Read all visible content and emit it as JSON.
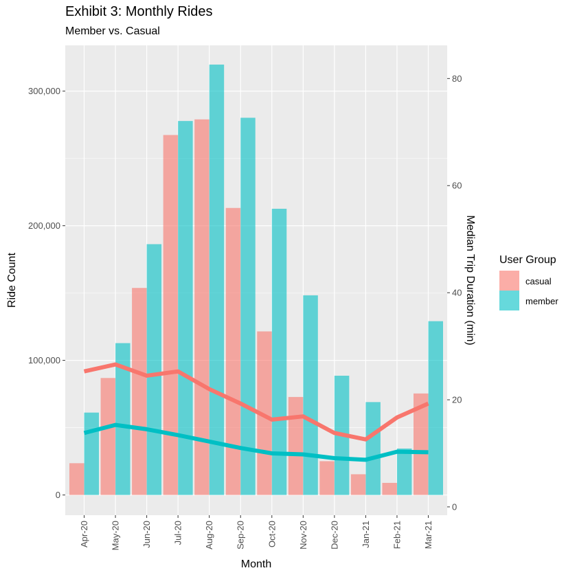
{
  "chart_data": {
    "type": "bar",
    "title": "Exhibit 3: Monthly Rides",
    "subtitle": "Member vs. Casual",
    "xlabel": "Month",
    "ylabel": "Ride Count",
    "y2label": "Median Trip Duration (min)",
    "categories": [
      "Apr-20",
      "May-20",
      "Jun-20",
      "Jul-20",
      "Aug-20",
      "Sep-20",
      "Oct-20",
      "Nov-20",
      "Dec-20",
      "Jan-21",
      "Feb-21",
      "Mar-21"
    ],
    "ylim": [
      -15000,
      334000
    ],
    "y2lim": [
      -1.55,
      86.2
    ],
    "yticks": [
      0,
      100000,
      200000,
      300000
    ],
    "ytick_labels": [
      "0",
      "100,000",
      "200,000",
      "300,000"
    ],
    "y2ticks": [
      0,
      20,
      40,
      60,
      80
    ],
    "y2tick_labels": [
      "0",
      "20",
      "40",
      "60",
      "80"
    ],
    "grid": true,
    "legend": {
      "title": "User Group",
      "position": "right",
      "entries": [
        "casual",
        "member"
      ]
    },
    "series": [
      {
        "name": "casual",
        "color": "#F8766D",
        "bar_values": [
          23600,
          86900,
          153800,
          267400,
          279000,
          213200,
          121500,
          72800,
          25100,
          15400,
          9000,
          75400
        ],
        "line_values": [
          25.3,
          26.6,
          24.5,
          25.3,
          22.0,
          19.3,
          16.3,
          16.9,
          13.8,
          12.6,
          16.7,
          19.3
        ]
      },
      {
        "name": "member",
        "color": "#00BFC4",
        "bar_values": [
          61200,
          112800,
          186300,
          277800,
          319700,
          280200,
          212600,
          148300,
          88600,
          69000,
          34500,
          129100
        ],
        "line_values": [
          13.8,
          15.3,
          14.5,
          13.4,
          12.2,
          11.0,
          10.0,
          9.8,
          9.1,
          8.8,
          10.3,
          10.2
        ]
      }
    ]
  }
}
